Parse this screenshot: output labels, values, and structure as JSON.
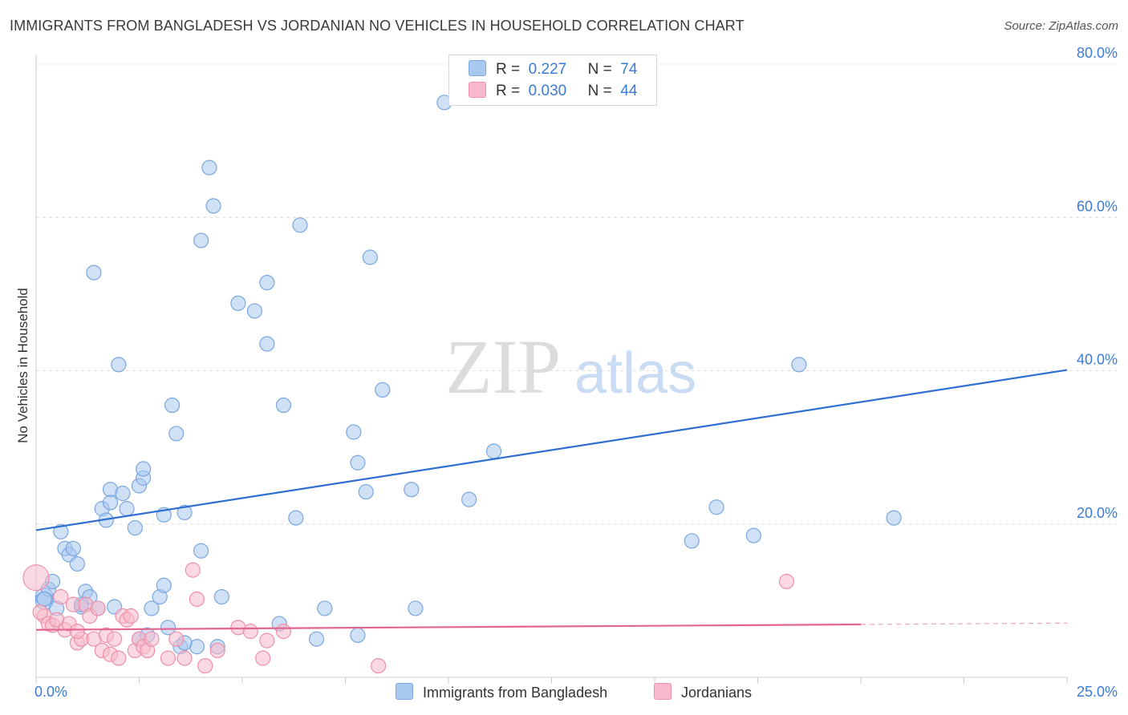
{
  "title": "IMMIGRANTS FROM BANGLADESH VS JORDANIAN NO VEHICLES IN HOUSEHOLD CORRELATION CHART",
  "source": "Source: ZipAtlas.com",
  "watermark": {
    "zip": "ZIP",
    "atlas": "atlas"
  },
  "legend_top": [
    {
      "r_label": "R =",
      "r_value": "0.227",
      "n_label": "N =",
      "n_value": "74",
      "color": "#a9c8ee",
      "border": "#7aa7e0"
    },
    {
      "r_label": "R =",
      "r_value": "0.030",
      "n_label": "N =",
      "n_value": "44",
      "color": "#f7b9cb",
      "border": "#ee8fab"
    }
  ],
  "legend_bottom": [
    {
      "label": "Immigrants from Bangladesh",
      "color": "#a9c8ee"
    },
    {
      "label": "Jordanians",
      "color": "#f7b9cb"
    }
  ],
  "chart_data": {
    "type": "scatter",
    "title": "IMMIGRANTS FROM BANGLADESH VS JORDANIAN NO VEHICLES IN HOUSEHOLD CORRELATION CHART",
    "xlabel": "",
    "ylabel": "No Vehicles in Household",
    "xlim": [
      0,
      25
    ],
    "ylim": [
      0,
      80
    ],
    "x_tick_labels": [
      "0.0%",
      "25.0%"
    ],
    "y_tick_labels": [
      "20.0%",
      "40.0%",
      "60.0%",
      "80.0%"
    ],
    "y_ticks": [
      20,
      40,
      60,
      80
    ],
    "series": [
      {
        "name": "Immigrants from Bangladesh",
        "color": "#a9c8ee",
        "stroke": "#7aa7e0",
        "trend": {
          "x": [
            0,
            25
          ],
          "y": [
            19.2,
            40.1
          ],
          "color": "#2f6fd1"
        },
        "points": [
          [
            0.2,
            10.5
          ],
          [
            0.2,
            10.0
          ],
          [
            0.3,
            11.5
          ],
          [
            0.4,
            12.5
          ],
          [
            0.5,
            9.0
          ],
          [
            0.6,
            19.0
          ],
          [
            0.7,
            16.8
          ],
          [
            0.8,
            16.0
          ],
          [
            0.9,
            16.8
          ],
          [
            1.0,
            14.8
          ],
          [
            1.1,
            9.2
          ],
          [
            1.2,
            11.2
          ],
          [
            1.3,
            10.5
          ],
          [
            1.4,
            52.8
          ],
          [
            1.5,
            9.0
          ],
          [
            1.6,
            22.0
          ],
          [
            1.7,
            20.5
          ],
          [
            1.8,
            24.5
          ],
          [
            1.8,
            22.8
          ],
          [
            1.9,
            9.2
          ],
          [
            2.0,
            40.8
          ],
          [
            2.1,
            24.0
          ],
          [
            2.2,
            22.0
          ],
          [
            2.4,
            19.5
          ],
          [
            2.5,
            25.0
          ],
          [
            2.6,
            26.0
          ],
          [
            2.6,
            27.2
          ],
          [
            2.8,
            9.0
          ],
          [
            3.0,
            10.5
          ],
          [
            3.1,
            12.0
          ],
          [
            3.1,
            21.2
          ],
          [
            3.2,
            6.5
          ],
          [
            3.3,
            35.5
          ],
          [
            3.4,
            31.8
          ],
          [
            3.5,
            4.0
          ],
          [
            3.6,
            21.5
          ],
          [
            3.9,
            4.0
          ],
          [
            4.0,
            16.5
          ],
          [
            4.0,
            57.0
          ],
          [
            4.2,
            66.5
          ],
          [
            4.3,
            61.5
          ],
          [
            4.4,
            4.0
          ],
          [
            4.5,
            10.5
          ],
          [
            4.9,
            48.8
          ],
          [
            5.3,
            47.8
          ],
          [
            5.6,
            43.5
          ],
          [
            5.6,
            51.5
          ],
          [
            5.9,
            7.0
          ],
          [
            6.0,
            35.5
          ],
          [
            6.3,
            20.8
          ],
          [
            6.4,
            59.0
          ],
          [
            6.8,
            5.0
          ],
          [
            7.0,
            9.0
          ],
          [
            7.7,
            32.0
          ],
          [
            7.8,
            5.5
          ],
          [
            7.8,
            28.0
          ],
          [
            8.0,
            24.2
          ],
          [
            8.1,
            54.8
          ],
          [
            8.4,
            37.5
          ],
          [
            9.1,
            24.5
          ],
          [
            9.2,
            9.0
          ],
          [
            9.9,
            75.0
          ],
          [
            10.5,
            23.2
          ],
          [
            11.1,
            29.5
          ],
          [
            15.9,
            17.8
          ],
          [
            16.5,
            22.2
          ],
          [
            17.4,
            18.5
          ],
          [
            18.5,
            40.8
          ],
          [
            20.8,
            20.8
          ],
          [
            1.1,
            9.5
          ],
          [
            0.2,
            10.2
          ],
          [
            2.5,
            5.0
          ],
          [
            2.7,
            5.5
          ],
          [
            3.6,
            4.5
          ]
        ]
      },
      {
        "name": "Jordanians",
        "color": "#f7b9cb",
        "stroke": "#ee8fab",
        "trend": {
          "x": [
            0,
            20
          ],
          "y": [
            6.2,
            6.9
          ],
          "color": "#e2668f",
          "dash_to": 25
        },
        "points": [
          [
            0.0,
            13.0
          ],
          [
            0.2,
            8.0
          ],
          [
            0.3,
            7.0
          ],
          [
            0.4,
            6.8
          ],
          [
            0.5,
            7.5
          ],
          [
            0.6,
            10.5
          ],
          [
            0.7,
            6.2
          ],
          [
            0.8,
            7.0
          ],
          [
            0.9,
            9.5
          ],
          [
            1.0,
            4.5
          ],
          [
            1.1,
            5.0
          ],
          [
            1.2,
            9.5
          ],
          [
            1.3,
            8.0
          ],
          [
            1.4,
            5.0
          ],
          [
            1.5,
            9.0
          ],
          [
            1.6,
            3.5
          ],
          [
            1.7,
            5.5
          ],
          [
            1.8,
            3.0
          ],
          [
            1.9,
            5.0
          ],
          [
            2.0,
            2.5
          ],
          [
            2.1,
            8.0
          ],
          [
            2.2,
            7.5
          ],
          [
            2.3,
            8.0
          ],
          [
            2.4,
            3.5
          ],
          [
            2.5,
            5.0
          ],
          [
            2.6,
            4.0
          ],
          [
            2.7,
            3.5
          ],
          [
            2.8,
            5.0
          ],
          [
            3.2,
            2.5
          ],
          [
            3.4,
            5.0
          ],
          [
            3.6,
            2.5
          ],
          [
            3.8,
            14.0
          ],
          [
            3.9,
            10.2
          ],
          [
            4.1,
            1.5
          ],
          [
            4.4,
            3.5
          ],
          [
            4.9,
            6.5
          ],
          [
            5.2,
            6.0
          ],
          [
            5.5,
            2.5
          ],
          [
            5.6,
            4.8
          ],
          [
            6.0,
            6.0
          ],
          [
            8.3,
            1.5
          ],
          [
            18.2,
            12.5
          ],
          [
            0.1,
            8.5
          ],
          [
            1.0,
            6.0
          ]
        ]
      }
    ]
  }
}
